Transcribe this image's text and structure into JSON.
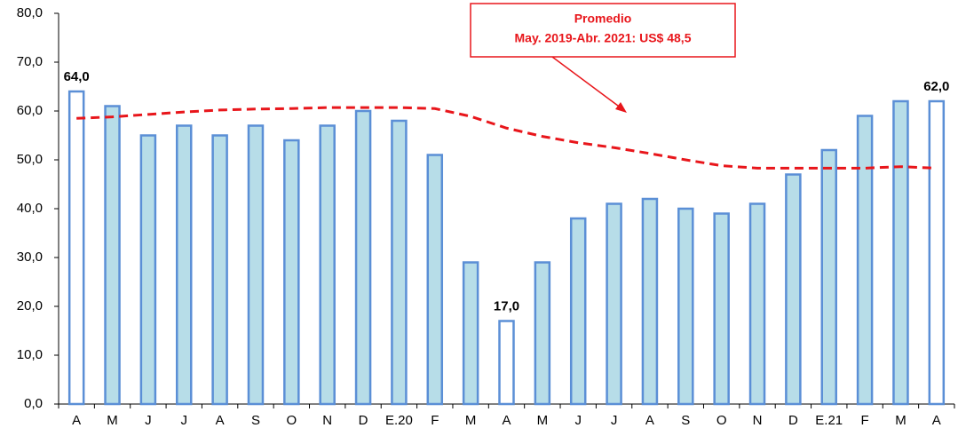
{
  "chart_data": {
    "type": "bar",
    "categories": [
      "A",
      "M",
      "J",
      "J",
      "A",
      "S",
      "O",
      "N",
      "D",
      "E.20",
      "F",
      "M",
      "A",
      "M",
      "J",
      "J",
      "A",
      "S",
      "O",
      "N",
      "D",
      "E.21",
      "F",
      "M",
      "A"
    ],
    "series": [
      {
        "type": "bar",
        "values": [
          64,
          61,
          55,
          57,
          55,
          57,
          54,
          57,
          60,
          58,
          51,
          29,
          17,
          29,
          38,
          41,
          42,
          40,
          39,
          41,
          47,
          52,
          59,
          62,
          62
        ],
        "value_labels": [
          "64,0",
          null,
          null,
          null,
          null,
          null,
          null,
          null,
          null,
          null,
          null,
          null,
          "17,0",
          null,
          null,
          null,
          null,
          null,
          null,
          null,
          null,
          null,
          null,
          null,
          "62,0"
        ],
        "colors": [
          "#ffffff",
          "#b7dde8",
          "#b7dde8",
          "#b7dde8",
          "#b7dde8",
          "#b7dde8",
          "#b7dde8",
          "#b7dde8",
          "#b7dde8",
          "#b7dde8",
          "#b7dde8",
          "#b7dde8",
          "#ffffff",
          "#b7dde8",
          "#b7dde8",
          "#b7dde8",
          "#b7dde8",
          "#b7dde8",
          "#b7dde8",
          "#b7dde8",
          "#b7dde8",
          "#b7dde8",
          "#b7dde8",
          "#b7dde8",
          "#ffffff"
        ],
        "edge_color": "#5b8fd6"
      },
      {
        "type": "line",
        "style": "dashed",
        "color": "#e8161b",
        "values": [
          58.5,
          58.8,
          59.3,
          59.8,
          60.2,
          60.4,
          60.5,
          60.7,
          60.7,
          60.7,
          60.5,
          58.9,
          56.5,
          54.8,
          53.5,
          52.5,
          51.3,
          50.0,
          48.8,
          48.3,
          48.3,
          48.3,
          48.3,
          48.6,
          48.3
        ]
      }
    ],
    "annotation": {
      "lines": [
        "Promedio",
        "May. 2019-Abr. 2021: US$ 48,5"
      ],
      "color": "#e8161b"
    },
    "ylim": [
      0,
      80
    ],
    "yticks": [
      {
        "value": 0,
        "label": "0,0"
      },
      {
        "value": 10,
        "label": "10,0"
      },
      {
        "value": 20,
        "label": "20,0"
      },
      {
        "value": 30,
        "label": "30,0"
      },
      {
        "value": 40,
        "label": "40,0"
      },
      {
        "value": 50,
        "label": "50,0"
      },
      {
        "value": 60,
        "label": "60,0"
      },
      {
        "value": 70,
        "label": "70,0"
      },
      {
        "value": 80,
        "label": "80,0"
      }
    ]
  }
}
